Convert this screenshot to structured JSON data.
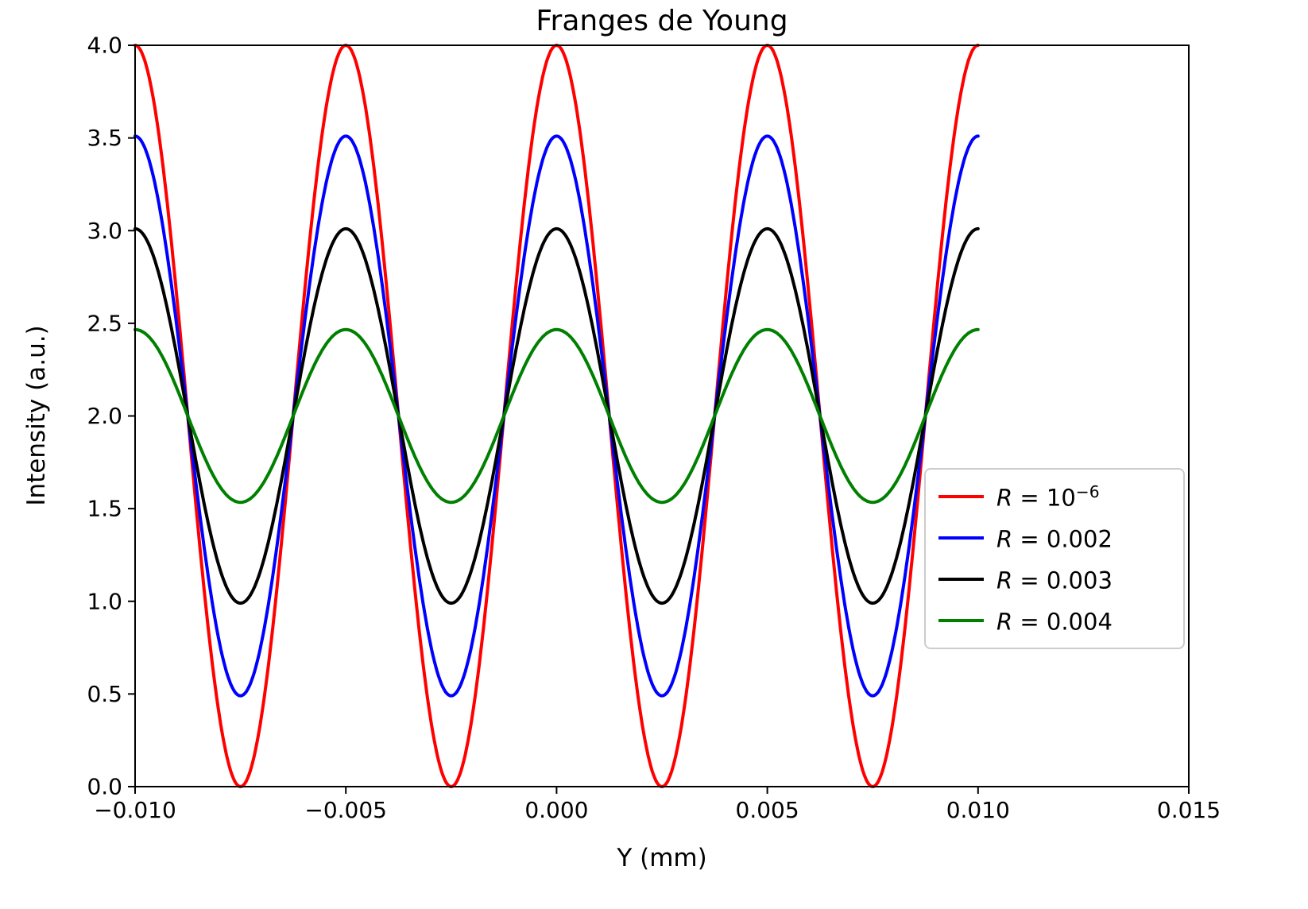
{
  "chart_data": {
    "type": "line",
    "title": "Franges de Young",
    "xlabel": "Y (mm)",
    "ylabel": "Intensity (a.u.)",
    "xlim": [
      -0.01,
      0.015
    ],
    "ylim": [
      0.0,
      4.0
    ],
    "xticks": [
      -0.01,
      -0.005,
      0.0,
      0.005,
      0.01,
      0.015
    ],
    "xtick_labels": [
      "−0.010",
      "−0.005",
      "0.000",
      "0.005",
      "0.010",
      "0.015"
    ],
    "yticks": [
      0.0,
      0.5,
      1.0,
      1.5,
      2.0,
      2.5,
      3.0,
      3.5,
      4.0
    ],
    "ytick_labels": [
      "0.0",
      "0.5",
      "1.0",
      "1.5",
      "2.0",
      "2.5",
      "3.0",
      "3.5",
      "4.0"
    ],
    "grid": false,
    "legend_position": "center-right",
    "model": "I(Y) = mean_intensity * (1 + visibility * cos(2*pi*Y / period_mm))",
    "mean_intensity": 2.0,
    "period_mm": 0.005,
    "x_data_min": -0.01,
    "x_data_max": 0.01,
    "maxima_at_mm": [
      -0.01,
      -0.005,
      0.0,
      0.005,
      0.01
    ],
    "minima_at_mm": [
      -0.0075,
      -0.0025,
      0.0025,
      0.0075
    ],
    "series": [
      {
        "id": "r-1e-06",
        "name": "R = 10^-6",
        "color": "#ff0000",
        "visibility": 1.0,
        "intensity_max": 4.0,
        "intensity_min": 0.0,
        "legend": {
          "var": "R",
          "rest": " = 10",
          "sup": "−6"
        }
      },
      {
        "id": "r-0-002",
        "name": "R = 0.002",
        "color": "#0000ff",
        "visibility": 0.755,
        "intensity_max": 3.51,
        "intensity_min": 0.49,
        "legend": {
          "var": "R",
          "rest": " = 0.002",
          "sup": ""
        }
      },
      {
        "id": "r-0-003",
        "name": "R = 0.003",
        "color": "#000000",
        "visibility": 0.505,
        "intensity_max": 3.01,
        "intensity_min": 0.99,
        "legend": {
          "var": "R",
          "rest": " = 0.003",
          "sup": ""
        }
      },
      {
        "id": "r-0-004",
        "name": "R = 0.004",
        "color": "#008000",
        "visibility": 0.233,
        "intensity_max": 2.47,
        "intensity_min": 1.53,
        "legend": {
          "var": "R",
          "rest": " = 0.004",
          "sup": ""
        }
      }
    ]
  }
}
